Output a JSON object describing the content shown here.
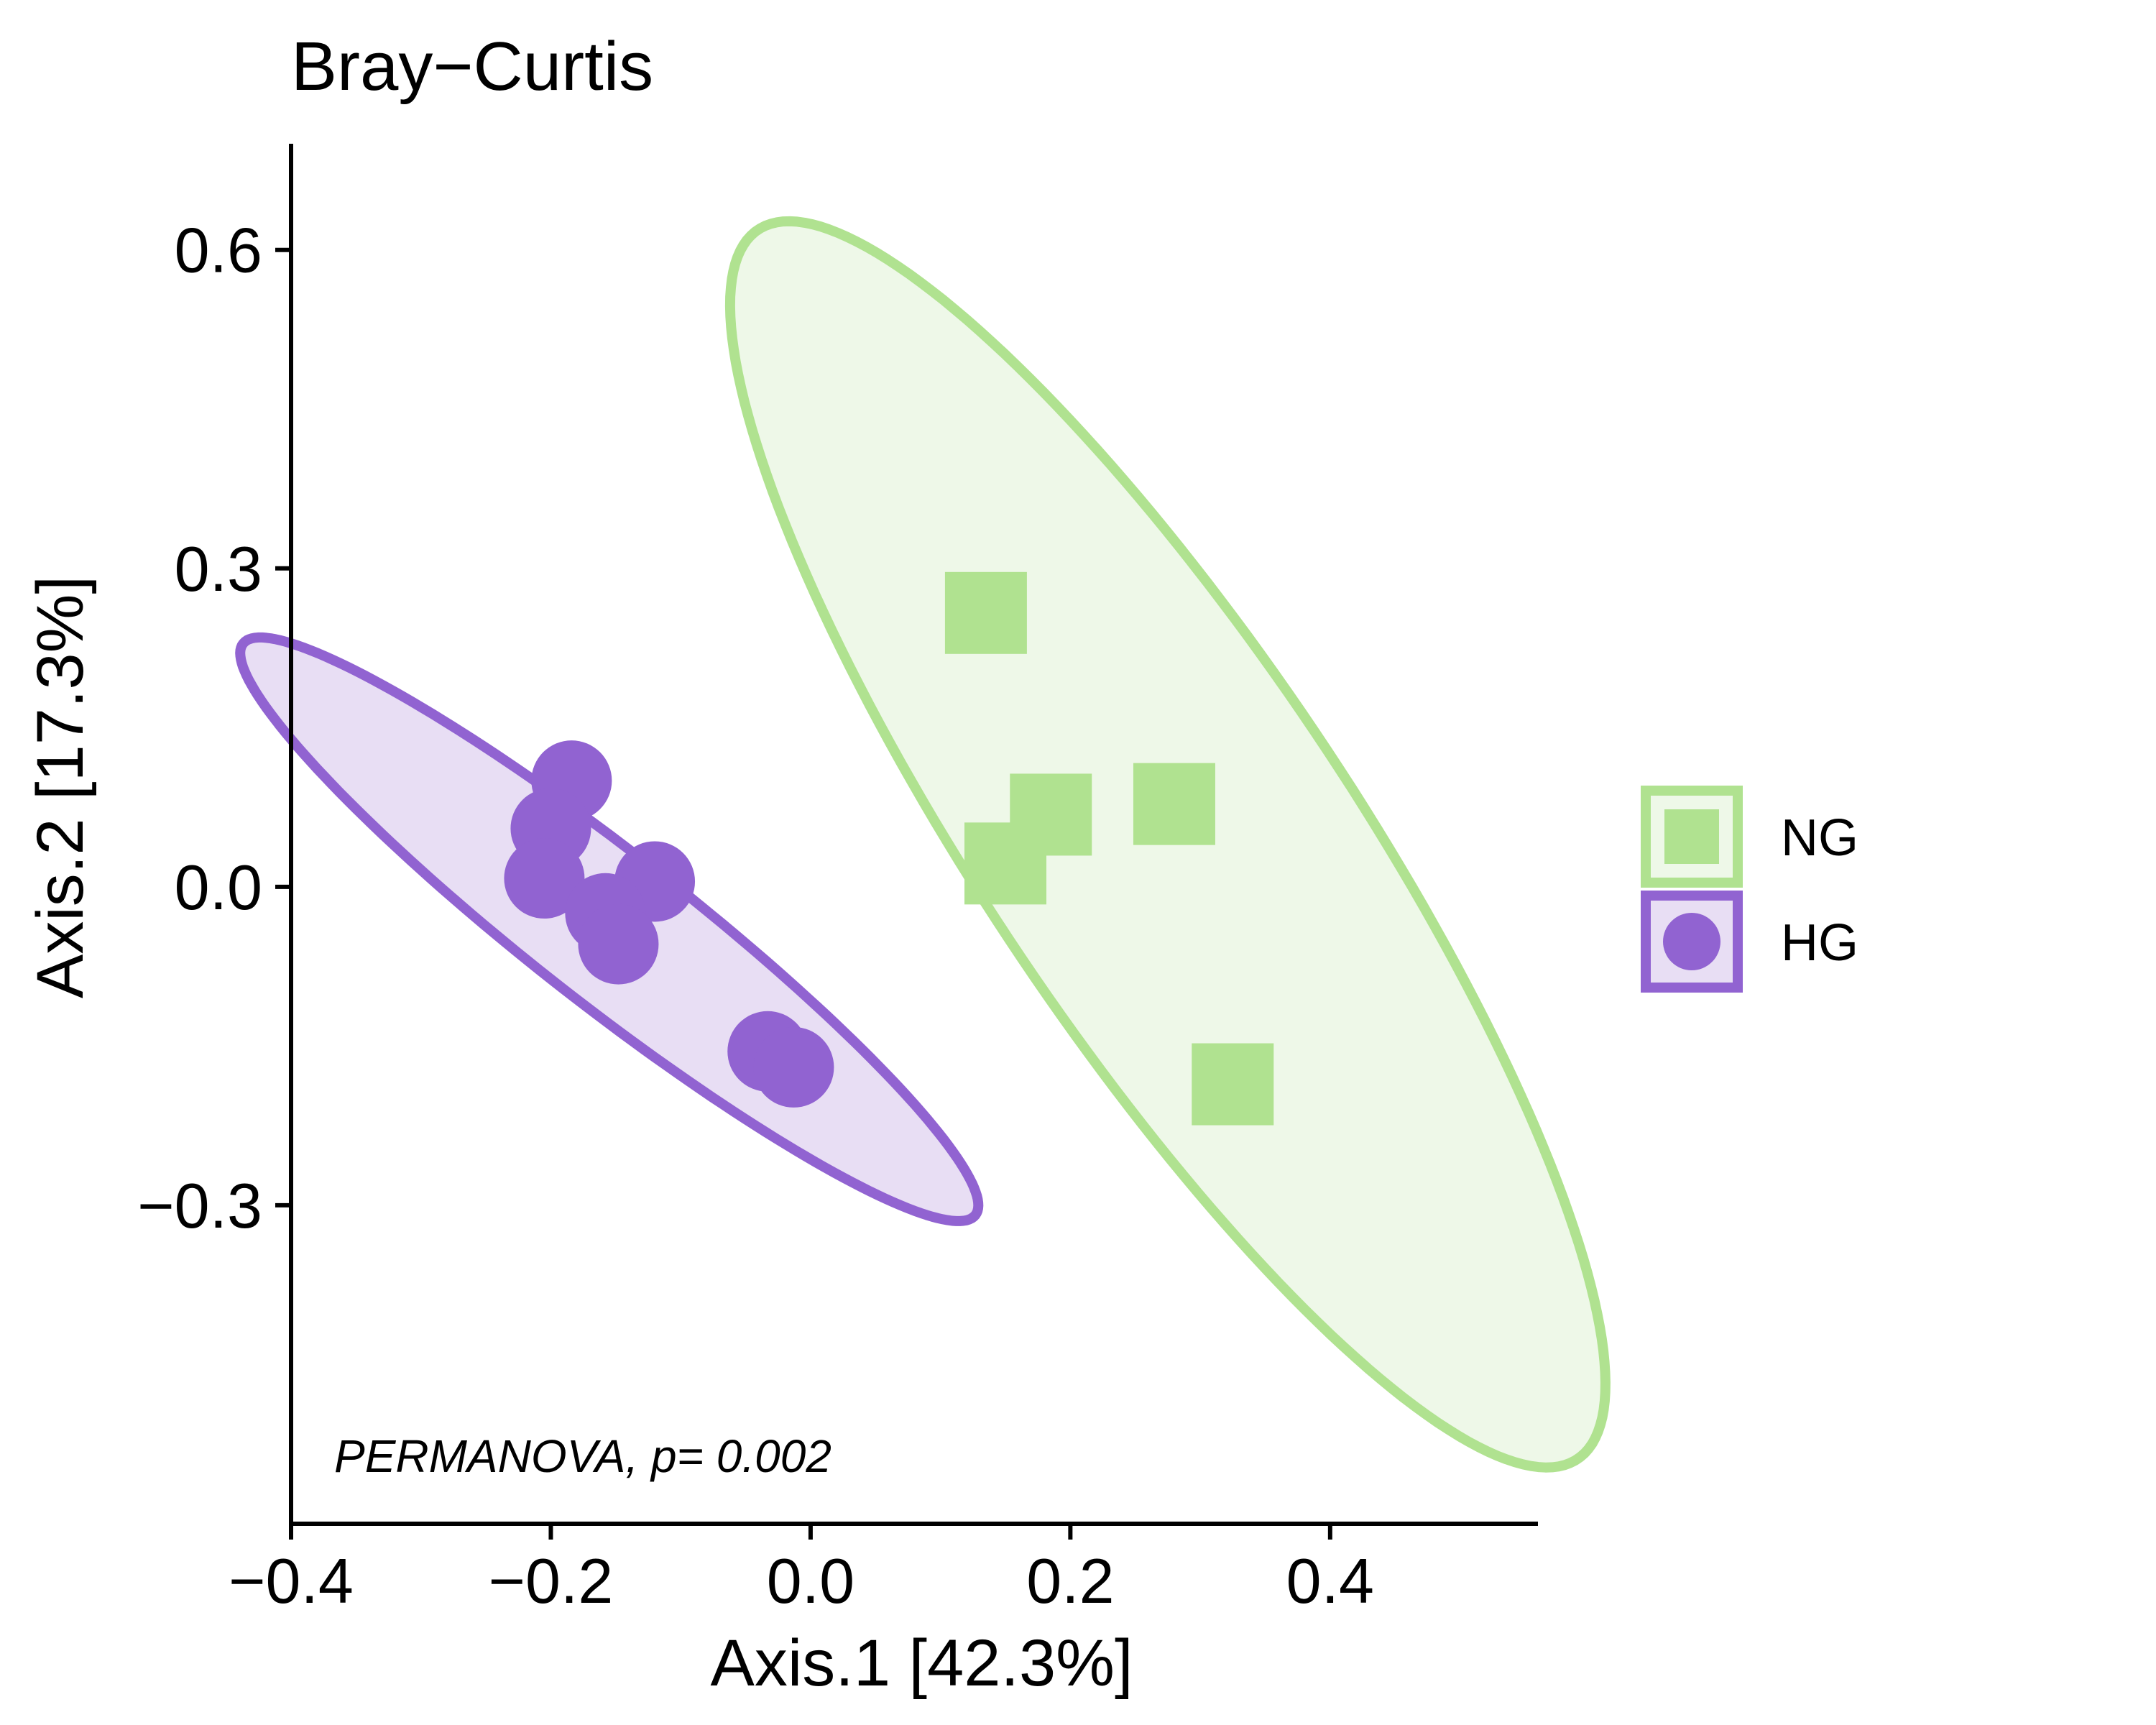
{
  "chart_data": {
    "type": "scatter",
    "title": "Bray−Curtis",
    "xlabel": "Axis.1   [42.3%]",
    "ylabel": "Axis.2   [17.3%]",
    "xlim": [
      -0.4,
      0.56
    ],
    "ylim": [
      -0.6,
      0.7
    ],
    "x_ticks": [
      -0.4,
      -0.2,
      0.0,
      0.2,
      0.4
    ],
    "x_tick_labels": [
      "−0.4",
      "−0.2",
      "0.0",
      "0.2",
      "0.4"
    ],
    "y_ticks": [
      -0.3,
      0.0,
      0.3,
      0.6
    ],
    "y_tick_labels": [
      "−0.3",
      "0.0",
      "0.3",
      "0.6"
    ],
    "grid": false,
    "legend_position": "right",
    "annotation": "PERMANOVA, p= 0.002",
    "series": [
      {
        "name": "NG",
        "marker": "square",
        "color": "#b0e290",
        "fill": "#eef8e8",
        "points": [
          {
            "x": 0.135,
            "y": 0.258
          },
          {
            "x": 0.185,
            "y": 0.068
          },
          {
            "x": 0.15,
            "y": 0.022
          },
          {
            "x": 0.28,
            "y": 0.078
          },
          {
            "x": 0.325,
            "y": -0.186
          }
        ],
        "ellipse": {
          "cx": 0.275,
          "cy": 0.04,
          "a": 0.66,
          "b": 0.15,
          "angle_deg": -62
        }
      },
      {
        "name": "HG",
        "marker": "circle",
        "color": "#9163d1",
        "fill": "#e8def4",
        "points": [
          {
            "x": -0.184,
            "y": 0.1
          },
          {
            "x": -0.2,
            "y": 0.055
          },
          {
            "x": -0.205,
            "y": 0.008
          },
          {
            "x": -0.12,
            "y": 0.005
          },
          {
            "x": -0.158,
            "y": -0.025
          },
          {
            "x": -0.148,
            "y": -0.054
          },
          {
            "x": -0.033,
            "y": -0.155
          },
          {
            "x": -0.013,
            "y": -0.17
          }
        ],
        "ellipse": {
          "cx": -0.155,
          "cy": -0.04,
          "a": 0.39,
          "b": 0.065,
          "angle_deg": -44
        }
      }
    ]
  }
}
